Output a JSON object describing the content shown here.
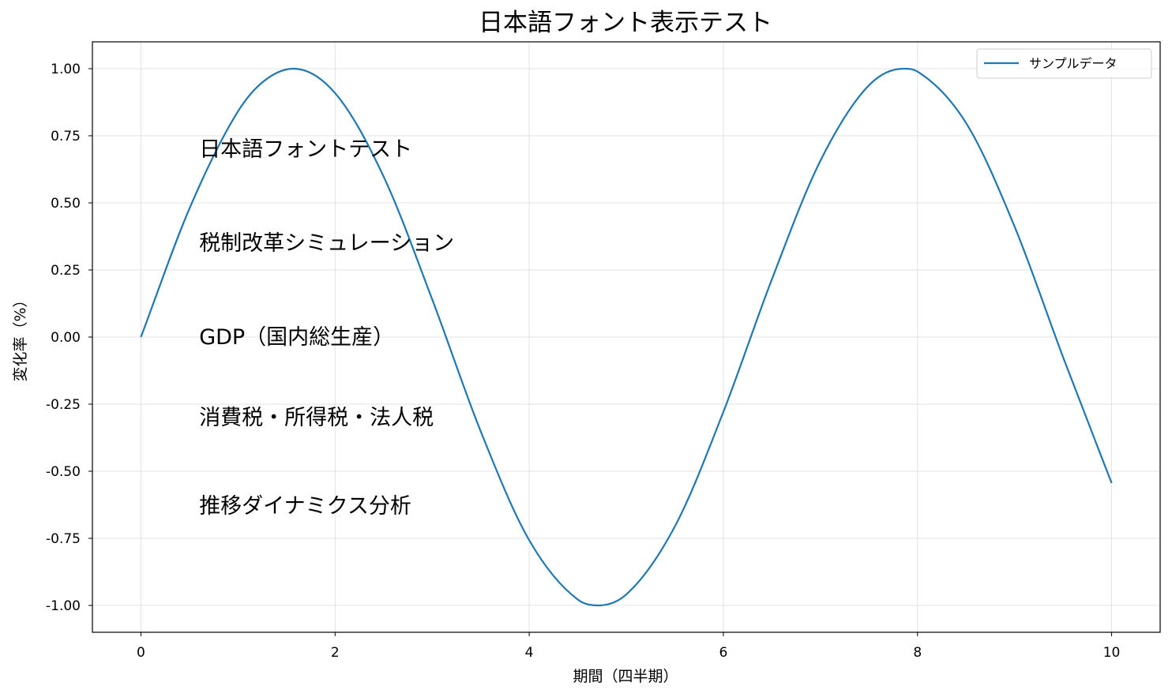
{
  "chart_data": {
    "type": "line",
    "title": "日本語フォント表示テスト",
    "xlabel": "期間（四半期）",
    "ylabel": "変化率（%）",
    "xlim": [
      -0.5,
      10.5
    ],
    "ylim": [
      -1.1,
      1.1
    ],
    "x_ticks": [
      0,
      2,
      4,
      6,
      8,
      10
    ],
    "x_tick_labels": [
      "0",
      "2",
      "4",
      "6",
      "8",
      "10"
    ],
    "y_ticks": [
      1.0,
      0.75,
      0.5,
      0.25,
      0.0,
      -0.25,
      -0.5,
      -0.75,
      -1.0
    ],
    "y_tick_labels": [
      "1.00",
      "0.75",
      "0.50",
      "0.25",
      "0.00",
      "-0.25",
      "-0.50",
      "-0.75",
      "-1.00"
    ],
    "grid": true,
    "legend_position": "top-right",
    "series": [
      {
        "name": "サンプルデータ",
        "color": "#1f77b4",
        "x": [
          0,
          0.5,
          1,
          1.25,
          1.5708,
          2,
          2.5,
          3,
          3.5,
          4,
          4.5,
          4.7124,
          5,
          5.5,
          6,
          6.5,
          7,
          7.5,
          7.854,
          8,
          8.5,
          9,
          9.5,
          10
        ],
        "y": [
          0,
          0.479,
          0.841,
          0.949,
          1.0,
          0.909,
          0.598,
          0.141,
          -0.351,
          -0.757,
          -0.978,
          -1.0,
          -0.959,
          -0.706,
          -0.279,
          0.215,
          0.657,
          0.938,
          1.0,
          0.989,
          0.798,
          0.412,
          -0.075,
          -0.544
        ]
      }
    ],
    "annotations": [
      {
        "text": "日本語フォントテスト",
        "x": 0.6,
        "y": 0.7
      },
      {
        "text": "税制改革シミュレーション",
        "x": 0.6,
        "y": 0.35
      },
      {
        "text": "GDP（国内総生産）",
        "x": 0.6,
        "y": 0.0
      },
      {
        "text": "消費税・所得税・法人税",
        "x": 0.6,
        "y": -0.3
      },
      {
        "text": "推移ダイナミクス分析",
        "x": 0.6,
        "y": -0.63
      }
    ]
  }
}
